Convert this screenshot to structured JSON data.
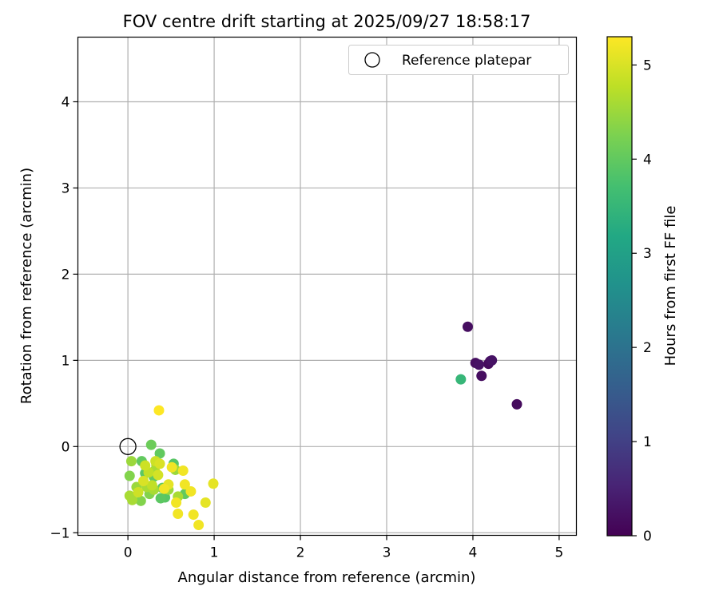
{
  "chart_data": {
    "type": "scatter",
    "title": "FOV centre drift starting at 2025/09/27 18:58:17",
    "xlabel": "Angular distance from reference (arcmin)",
    "ylabel": "Rotation from reference (arcmin)",
    "xlim": [
      -0.58,
      5.2
    ],
    "ylim": [
      -1.03,
      4.75
    ],
    "xticks": [
      "0",
      "1",
      "2",
      "3",
      "4",
      "5"
    ],
    "yticks": [
      "−1",
      "0",
      "1",
      "2",
      "3",
      "4"
    ],
    "xtick_values": [
      0,
      1,
      2,
      3,
      4,
      5
    ],
    "ytick_values": [
      -1,
      0,
      1,
      2,
      3,
      4
    ],
    "grid": true,
    "legend": {
      "position": "top-right",
      "entries": [
        "Reference platepar"
      ]
    },
    "reference_point": {
      "x": 0,
      "y": 0
    },
    "colorbar": {
      "label": "Hours from first FF file",
      "colormap": "viridis",
      "range": [
        0,
        5.3
      ],
      "ticks": [
        "0",
        "1",
        "2",
        "3",
        "4",
        "5"
      ],
      "tick_values": [
        0,
        1,
        2,
        3,
        4,
        5
      ]
    },
    "colormap_stops": [
      "#440154",
      "#482475",
      "#414487",
      "#355f8d",
      "#2a788e",
      "#21918c",
      "#22a884",
      "#44bf70",
      "#7ad151",
      "#bddf26",
      "#fde725"
    ],
    "points": [
      {
        "x": 3.94,
        "y": 1.39,
        "h": 0.2
      },
      {
        "x": 4.03,
        "y": 0.97,
        "h": 0.2
      },
      {
        "x": 4.07,
        "y": 0.95,
        "h": 0.25
      },
      {
        "x": 4.18,
        "y": 0.96,
        "h": 0.15
      },
      {
        "x": 4.2,
        "y": 0.99,
        "h": 0.2
      },
      {
        "x": 4.22,
        "y": 1.0,
        "h": 0.25
      },
      {
        "x": 4.1,
        "y": 0.82,
        "h": 0.2
      },
      {
        "x": 4.51,
        "y": 0.49,
        "h": 0.15
      },
      {
        "x": 3.86,
        "y": 0.78,
        "h": 3.5
      },
      {
        "x": 0.37,
        "y": -0.08,
        "h": 4.0
      },
      {
        "x": 0.16,
        "y": -0.17,
        "h": 4.0
      },
      {
        "x": 0.27,
        "y": 0.02,
        "h": 4.1
      },
      {
        "x": 0.53,
        "y": -0.2,
        "h": 3.9
      },
      {
        "x": 0.2,
        "y": -0.31,
        "h": 3.95
      },
      {
        "x": 0.3,
        "y": -0.35,
        "h": 4.0
      },
      {
        "x": 0.4,
        "y": -0.48,
        "h": 4.0
      },
      {
        "x": 0.66,
        "y": -0.55,
        "h": 4.0
      },
      {
        "x": 0.38,
        "y": -0.6,
        "h": 3.95
      },
      {
        "x": 0.43,
        "y": -0.59,
        "h": 3.9
      },
      {
        "x": 0.25,
        "y": -0.55,
        "h": 4.3
      },
      {
        "x": 0.15,
        "y": -0.63,
        "h": 4.3
      },
      {
        "x": 0.02,
        "y": -0.34,
        "h": 4.3
      },
      {
        "x": 0.04,
        "y": -0.17,
        "h": 4.5
      },
      {
        "x": 0.05,
        "y": -0.62,
        "h": 4.6
      },
      {
        "x": 0.02,
        "y": -0.57,
        "h": 4.6
      },
      {
        "x": 0.1,
        "y": -0.47,
        "h": 4.5
      },
      {
        "x": 0.22,
        "y": -0.47,
        "h": 4.6
      },
      {
        "x": 0.3,
        "y": -0.5,
        "h": 4.6
      },
      {
        "x": 0.31,
        "y": -0.28,
        "h": 4.6
      },
      {
        "x": 0.33,
        "y": -0.21,
        "h": 4.6
      },
      {
        "x": 0.47,
        "y": -0.5,
        "h": 4.5
      },
      {
        "x": 0.55,
        "y": -0.27,
        "h": 4.5
      },
      {
        "x": 0.58,
        "y": -0.58,
        "h": 4.6
      },
      {
        "x": 0.24,
        "y": -0.3,
        "h": 4.8
      },
      {
        "x": 0.28,
        "y": -0.45,
        "h": 4.8
      },
      {
        "x": 0.32,
        "y": -0.17,
        "h": 4.9
      },
      {
        "x": 0.37,
        "y": -0.2,
        "h": 5.0
      },
      {
        "x": 0.36,
        "y": 0.42,
        "h": 5.3
      },
      {
        "x": 0.42,
        "y": -0.49,
        "h": 5.2
      },
      {
        "x": 0.47,
        "y": -0.44,
        "h": 5.1
      },
      {
        "x": 0.51,
        "y": -0.24,
        "h": 5.2
      },
      {
        "x": 0.56,
        "y": -0.65,
        "h": 5.2
      },
      {
        "x": 0.58,
        "y": -0.78,
        "h": 5.2
      },
      {
        "x": 0.64,
        "y": -0.28,
        "h": 5.2
      },
      {
        "x": 0.66,
        "y": -0.44,
        "h": 5.2
      },
      {
        "x": 0.73,
        "y": -0.52,
        "h": 5.2
      },
      {
        "x": 0.76,
        "y": -0.79,
        "h": 5.2
      },
      {
        "x": 0.82,
        "y": -0.91,
        "h": 5.2
      },
      {
        "x": 0.9,
        "y": -0.65,
        "h": 5.1
      },
      {
        "x": 0.99,
        "y": -0.43,
        "h": 5.1
      },
      {
        "x": 0.18,
        "y": -0.4,
        "h": 5.0
      },
      {
        "x": 0.12,
        "y": -0.53,
        "h": 4.9
      },
      {
        "x": 0.2,
        "y": -0.22,
        "h": 4.9
      },
      {
        "x": 0.35,
        "y": -0.33,
        "h": 4.95
      }
    ]
  }
}
